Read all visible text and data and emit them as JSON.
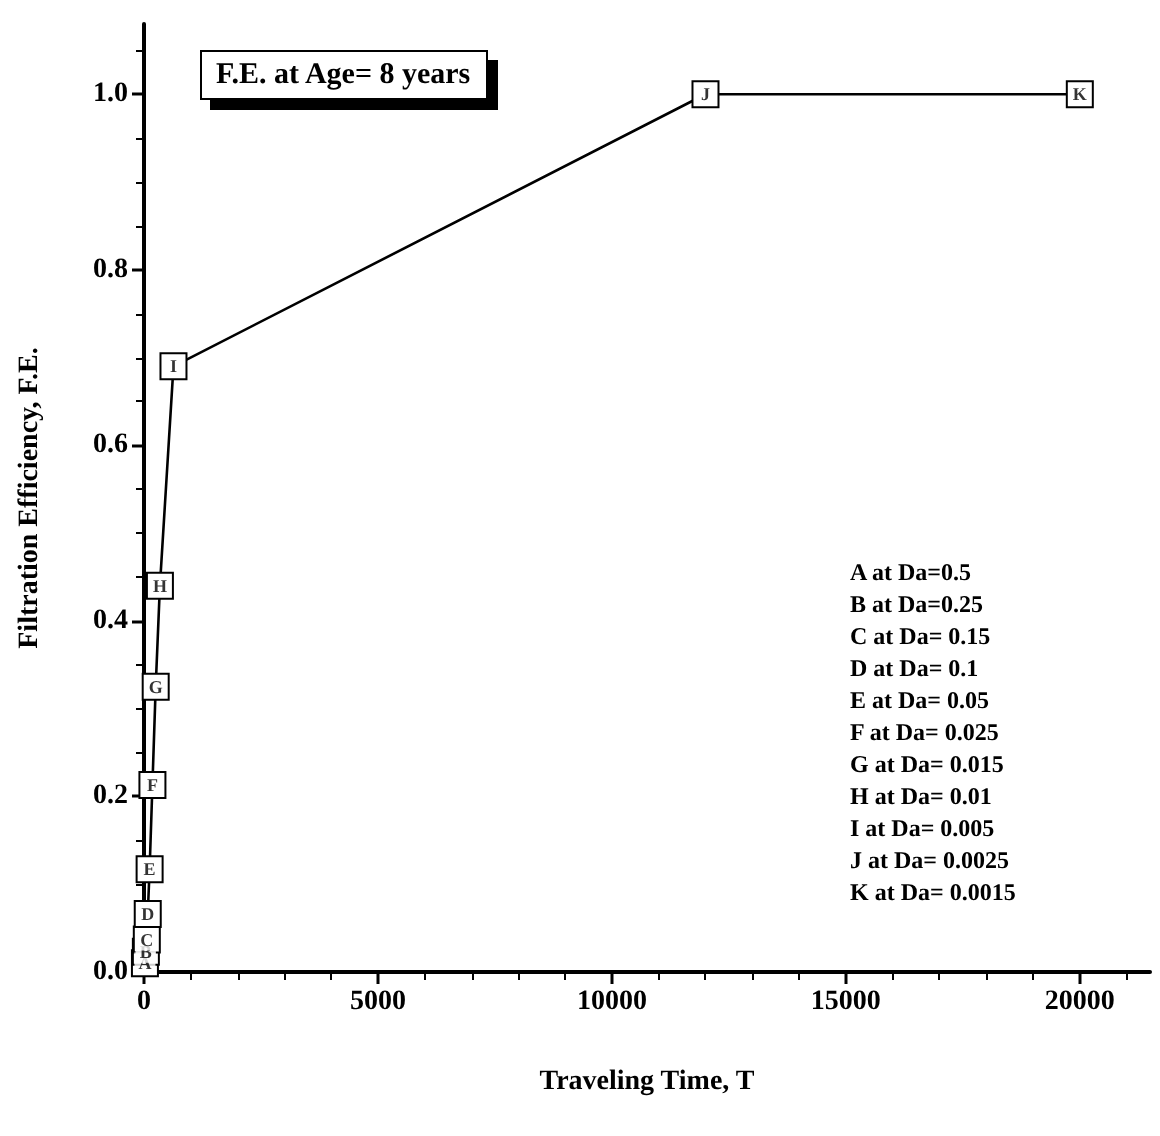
{
  "chart_data": {
    "type": "line",
    "title": "F.E. at Age= 8 years",
    "xlabel": "Traveling Time, T",
    "ylabel": "Filtration Efficiency, F.E.",
    "x": [
      20,
      40,
      60,
      80,
      120,
      180,
      250,
      340,
      630,
      12000,
      20000
    ],
    "series": [
      {
        "color": "#000000",
        "values": [
          0.01,
          0.023,
          0.037,
          0.066,
          0.117,
          0.213,
          0.325,
          0.44,
          0.69,
          1.0,
          1.0
        ]
      }
    ],
    "xlim": [
      0,
      21500
    ],
    "xticks": [
      0,
      5000,
      10000,
      15000,
      20000
    ],
    "ylim": [
      0,
      1.08
    ],
    "yticks": [
      {
        "value": 0,
        "label": "0.0"
      },
      0.2,
      0.4,
      0.6,
      0.8,
      {
        "value": 1,
        "label": "1.0"
      }
    ],
    "grid": false,
    "marker": "square",
    "line_style": "solid",
    "annotations": [
      {
        "text": "A",
        "x": 20,
        "y": 0.01
      },
      {
        "text": "B",
        "x": 40,
        "y": 0.023
      },
      {
        "text": "C",
        "x": 60,
        "y": 0.037
      },
      {
        "text": "D",
        "x": 80,
        "y": 0.066
      },
      {
        "text": "E",
        "x": 120,
        "y": 0.117
      },
      {
        "text": "F",
        "x": 180,
        "y": 0.213
      },
      {
        "text": "G",
        "x": 250,
        "y": 0.325
      },
      {
        "text": "H",
        "x": 340,
        "y": 0.44
      },
      {
        "text": "I",
        "x": 630,
        "y": 0.69
      },
      {
        "text": "J",
        "x": 12000,
        "y": 1.0
      },
      {
        "text": "K",
        "x": 20000,
        "y": 1.0
      },
      "A at Da=0.5",
      "B at Da=0.25",
      "C at Da= 0.15",
      "D at Da= 0.1",
      "E at Da= 0.05",
      "F at Da= 0.025",
      "G at Da= 0.015",
      "H at Da= 0.01",
      "I at Da= 0.005",
      "J at Da= 0.0025",
      "K at Da= 0.0015"
    ]
  }
}
